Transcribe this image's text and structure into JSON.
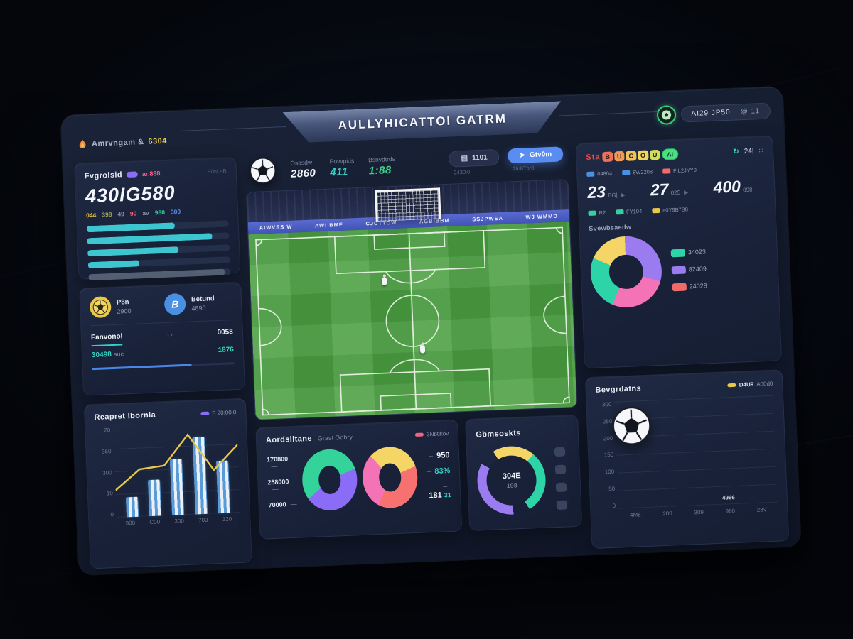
{
  "header": {
    "logo_text": "Amrvngam &",
    "logo_number": "6304",
    "title": "AULLYHICATTOI GATRM",
    "user_name": "AI29 JP50",
    "user_badge": "@ 11"
  },
  "left": {
    "overview": {
      "title": "Fvgrolsid",
      "badge_pink": "ar.888",
      "top_right": "F0st.sB",
      "big_value": "430IG580",
      "stats": [
        {
          "label": "044",
          "color": "#e8c84a"
        },
        {
          "label": "398",
          "color": "#9aa05c"
        },
        {
          "label": "49",
          "color": "#8a93a6"
        },
        {
          "label": "90",
          "color": "#f0647e"
        },
        {
          "label": "av",
          "color": "#8a93a6"
        },
        {
          "label": "960",
          "color": "#35d0a0"
        },
        {
          "label": "300",
          "color": "#5b8ef7"
        }
      ],
      "bars": [
        {
          "value": 62,
          "color": "#3ec6d0"
        },
        {
          "value": 88,
          "color": "#3ec6d0"
        },
        {
          "value": 64,
          "color": "#3ec6d0"
        },
        {
          "value": 36,
          "color": "#3ec6d0"
        },
        {
          "value": 96,
          "color": "#566074"
        }
      ]
    },
    "wallet": {
      "items": [
        {
          "label": "P8n",
          "value": "2900"
        },
        {
          "label": "Betund",
          "value": "4890"
        }
      ],
      "row1_label": "Fanvonol",
      "row1_value": "0058",
      "row2_label": "30498",
      "row2_unit": "auc",
      "row2_value": "1876",
      "arrows": "‹ ›"
    },
    "report": {
      "title": "Reapret Ibornia",
      "legend": "P 20:00:0",
      "legend_color": "#8b6cf6",
      "y_ticks": [
        "20",
        "360",
        "300",
        "10",
        "0"
      ],
      "x_ticks": [
        "900",
        "C00",
        "300",
        "700",
        "320"
      ],
      "bars": [
        22,
        40,
        62,
        85,
        58
      ],
      "line": [
        30,
        52,
        55,
        88,
        48,
        75
      ],
      "line_color": "#e8c84a"
    }
  },
  "center": {
    "match": {
      "stats": [
        {
          "label": "Osasdw",
          "value": "2860",
          "color": "#f2f5fa"
        },
        {
          "label": "Povvpids",
          "value": "411",
          "color": "#35d0c0"
        },
        {
          "label": "Bsnvdtrds",
          "value": "1:88",
          "color": "#3fd08a"
        }
      ],
      "button_dark": "1101",
      "button_dark_caption": "2430:0",
      "button_blue": "Gtv0m",
      "button_blue_caption": "2fn8Tbr8"
    },
    "field": {
      "ads": [
        "AIWVSS W",
        "AWI BME",
        "CJUTTOW",
        "AGBIBBM",
        "SSJPWSA",
        "WJ WMMD"
      ]
    },
    "possession": {
      "title": "Aordslltane",
      "subtitle": "Grast Gdbry",
      "legend": "3Nbtlkov",
      "legend_color": "#f0647e",
      "rows_left": [
        "170800",
        "258000",
        "70000"
      ],
      "donut1": [
        {
          "color": "#34d399",
          "value": 55
        },
        {
          "color": "#8b6cf6",
          "value": 45
        }
      ],
      "donut2": [
        {
          "color": "#f5d565",
          "value": 30
        },
        {
          "color": "#f87171",
          "value": 38
        },
        {
          "color": "#f472b6",
          "value": 32
        }
      ],
      "values_right": [
        {
          "value": "950",
          "suffix": "",
          "color": "#f2f5fa"
        },
        {
          "value": "83%",
          "suffix": "",
          "color": "#35d0c0"
        },
        {
          "value": "181",
          "suffix": "31",
          "color": "#f2f5fa"
        }
      ]
    },
    "gauge": {
      "title": "Gbmsoskts",
      "segments": [
        {
          "color": "#f5d565",
          "value": 20
        },
        {
          "color": "#2dd4a8",
          "value": 30
        },
        {
          "color": "transparent",
          "value": 8
        },
        {
          "color": "#9b7bf0",
          "value": 34
        },
        {
          "color": "transparent",
          "value": 8
        }
      ],
      "center_value": "304E",
      "center_sub": "198",
      "marker_count": 4
    }
  },
  "right": {
    "summary": {
      "title_prefix": "Sta",
      "chips": [
        {
          "t": "B",
          "c": "#f0705a"
        },
        {
          "t": "U",
          "c": "#f09a5a"
        },
        {
          "t": "C",
          "c": "#f0c05a"
        },
        {
          "t": "O",
          "c": "#f0d85a"
        },
        {
          "t": "U",
          "c": "#cfe05a"
        }
      ],
      "chip_ai": "AI",
      "header_count": "24|",
      "grid_icon": "∷",
      "top_legends": [
        {
          "color": "#4a90e2",
          "label": "04804"
        },
        {
          "color": "#4a90e2",
          "label": "8W2208"
        },
        {
          "color": "#f06a6a",
          "label": "FIL2JYY9"
        }
      ],
      "big_stats": [
        {
          "value": "23",
          "suffix": "BG|",
          "arrow": true
        },
        {
          "value": "27",
          "suffix": "025",
          "arrow": true
        },
        {
          "value": "400",
          "suffix": "098",
          "arrow": false
        }
      ],
      "bottom_legends": [
        {
          "color": "#35d0a0",
          "label": "R2"
        },
        {
          "color": "#35d0a0",
          "label": "FY104"
        },
        {
          "color": "#e8c84a",
          "label": "a0Y9B7B8"
        }
      ],
      "donut_label": "Svewbsaedw",
      "donut": [
        {
          "color": "#9b7bf0",
          "value": 30
        },
        {
          "color": "#f472b6",
          "value": 27
        },
        {
          "color": "#2dd4a8",
          "value": 25
        },
        {
          "color": "#f5d565",
          "value": 18
        }
      ],
      "donut_legend": [
        {
          "color": "#2dd4a8",
          "label": "34023"
        },
        {
          "color": "#9b7bf0",
          "label": "82409"
        },
        {
          "color": "#f06a6a",
          "label": "24028"
        }
      ]
    },
    "goals": {
      "title": "Bevgrdatns",
      "legend_label": "D4U9",
      "legend_note": "A00d0",
      "legend_color": "#e8c84a",
      "y_ticks": [
        "300",
        "250",
        "200",
        "150",
        "100",
        "50",
        "0"
      ],
      "x_ticks": [
        "4M5",
        "200",
        "309",
        "960",
        "28V"
      ],
      "bar_label": "4966",
      "bar_label_index": 3,
      "bars": [
        {
          "total": 38,
          "base": 9
        },
        {
          "total": 54,
          "base": 22
        },
        {
          "total": 84,
          "base": 24
        },
        {
          "total": 100,
          "base": 17
        },
        {
          "total": 55,
          "base": 14
        }
      ]
    }
  },
  "chart_data": [
    {
      "type": "bar",
      "title": "Reapret Ibornia",
      "categories": [
        "900",
        "C00",
        "300",
        "700",
        "320"
      ],
      "values": [
        22,
        40,
        62,
        85,
        58
      ],
      "overlay_line": [
        30,
        52,
        55,
        88,
        48,
        75
      ],
      "ylim": [
        0,
        100
      ],
      "legend_position": "top-right"
    },
    {
      "type": "pie",
      "title": "Aordslltane donut 1",
      "values": [
        55,
        45
      ],
      "labels": [
        "green",
        "purple"
      ]
    },
    {
      "type": "pie",
      "title": "Aordslltane donut 2",
      "values": [
        30,
        38,
        32
      ],
      "labels": [
        "yellow",
        "coral",
        "pink"
      ]
    },
    {
      "type": "pie",
      "title": "Svewbsaedw",
      "values": [
        30,
        27,
        25,
        18
      ],
      "labels": [
        "82409",
        "pink",
        "34023",
        "yellow"
      ]
    },
    {
      "type": "bar",
      "title": "Bevgrdatns",
      "categories": [
        "4M5",
        "200",
        "309",
        "960",
        "28V"
      ],
      "series": [
        {
          "name": "base-blue",
          "values": [
            9,
            22,
            24,
            17,
            14
          ]
        },
        {
          "name": "top-teal",
          "values": [
            29,
            32,
            60,
            83,
            41
          ]
        }
      ],
      "ylim": [
        0,
        300
      ],
      "annotation": "4966 above 4th bar"
    }
  ]
}
